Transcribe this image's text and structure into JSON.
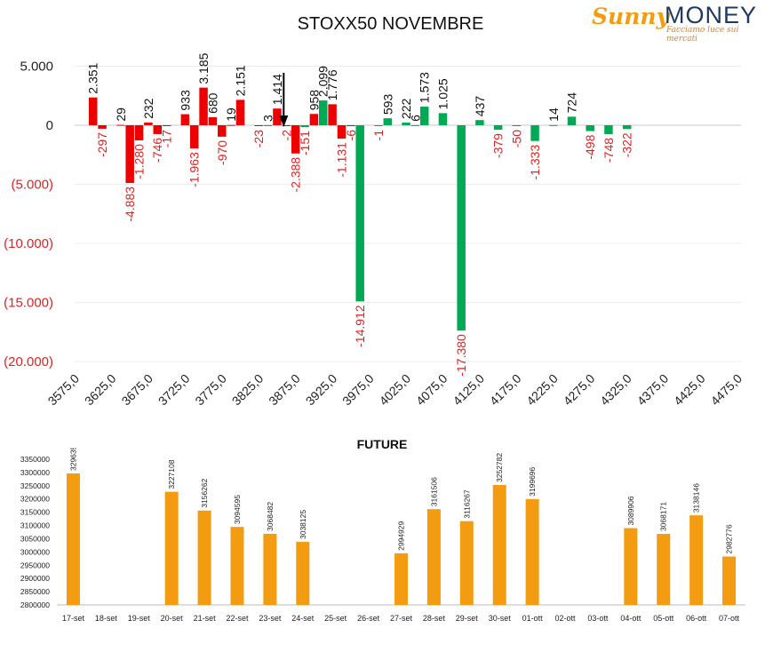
{
  "logo": {
    "part1": "Sunny",
    "part2": "MONEY",
    "tagline": "Facciamo luce sui mercati",
    "colors": {
      "sunny": "#f39c12",
      "money": "#1f3a5f"
    }
  },
  "colors": {
    "positive_otm": "#ee0000",
    "positive_itm": "#00aa55",
    "negative_label": "#dd2222",
    "future_bar": "#f39c12"
  },
  "chart_data": [
    {
      "type": "bar",
      "title": "STOXX50 NOVEMBRE",
      "strike_ticks": [
        "3575,0",
        "3625,0",
        "3675,0",
        "3725,0",
        "3775,0",
        "3825,0",
        "3875,0",
        "3925,0",
        "3975,0",
        "4025,0",
        "4075,0",
        "4125,0",
        "4175,0",
        "4225,0",
        "4275,0",
        "4325,0",
        "4375,0",
        "4425,0",
        "4475,0"
      ],
      "y_ticks": [
        "5.000",
        "0",
        "(5.000)",
        "(10.000)",
        "(15.000)",
        "(20.000)"
      ],
      "ylim": [
        -20000,
        5000
      ],
      "marker": "arrow at 4050",
      "series": [
        {
          "color": "red",
          "bars": [
            {
              "x": 3600,
              "value": 2351,
              "label": "2.351"
            },
            {
              "x": 3612.5,
              "value": -297,
              "label": "-297"
            },
            {
              "x": 3637.5,
              "value": 29,
              "label": "29"
            },
            {
              "x": 3650,
              "value": -4883,
              "label": "-4.883"
            },
            {
              "x": 3662.5,
              "value": -1280,
              "label": "-1.280"
            },
            {
              "x": 3675,
              "value": 232,
              "label": "232"
            },
            {
              "x": 3687.5,
              "value": -746,
              "label": "-746"
            },
            {
              "x": 3700,
              "value": -17,
              "label": "-17"
            },
            {
              "x": 3725,
              "value": 933,
              "label": "933"
            },
            {
              "x": 3737.5,
              "value": -1963,
              "label": "-1.963"
            },
            {
              "x": 3750,
              "value": 3185,
              "label": "3.185"
            },
            {
              "x": 3762.5,
              "value": 680,
              "label": "680"
            },
            {
              "x": 3775,
              "value": -970,
              "label": "-970"
            },
            {
              "x": 3787.5,
              "value": 19,
              "label": "19"
            },
            {
              "x": 3800,
              "value": 2151,
              "label": "2.151"
            },
            {
              "x": 3825,
              "value": -23,
              "label": "-23"
            },
            {
              "x": 3850,
              "value": 1414,
              "label": "1.414"
            },
            {
              "x": 3862.5,
              "value": -2,
              "label": "-2"
            },
            {
              "x": 3875,
              "value": -2388,
              "label": "-2.388"
            },
            {
              "x": 3900,
              "value": 958,
              "label": "958"
            },
            {
              "x": 3925,
              "value": 1776,
              "label": "1.776"
            },
            {
              "x": 3937.5,
              "value": -1131,
              "label": "-1.131"
            },
            {
              "x": 3950,
              "value": -6,
              "label": "-6"
            }
          ]
        },
        {
          "color": "green",
          "bars": [
            {
              "x": 3837.5,
              "value": 3,
              "label": "3"
            },
            {
              "x": 3887.5,
              "value": -151,
              "label": "-151"
            },
            {
              "x": 3912.5,
              "value": 2099,
              "label": "2.099"
            },
            {
              "x": 3962.5,
              "value": -14912,
              "label": "-14.912"
            },
            {
              "x": 3987.5,
              "value": -1,
              "label": "-1"
            },
            {
              "x": 4000,
              "value": 593,
              "label": "593"
            },
            {
              "x": 4025,
              "value": 222,
              "label": "222"
            },
            {
              "x": 4037.5,
              "value": 6,
              "label": "6"
            },
            {
              "x": 4050,
              "value": 1573,
              "label": "1.573"
            },
            {
              "x": 4075,
              "value": 1025,
              "label": "1.025"
            },
            {
              "x": 4100,
              "value": -17380,
              "label": "-17.380"
            },
            {
              "x": 4125,
              "value": 437,
              "label": "437"
            },
            {
              "x": 4150,
              "value": -379,
              "label": "-379"
            },
            {
              "x": 4175,
              "value": -50,
              "label": "-50"
            },
            {
              "x": 4200,
              "value": -1333,
              "label": "-1.333"
            },
            {
              "x": 4225,
              "value": 14,
              "label": "14"
            },
            {
              "x": 4250,
              "value": 724,
              "label": "724"
            },
            {
              "x": 4275,
              "value": -498,
              "label": "-498"
            },
            {
              "x": 4300,
              "value": -748,
              "label": "-748"
            },
            {
              "x": 4325,
              "value": -322,
              "label": "-322"
            }
          ]
        }
      ]
    },
    {
      "type": "bar",
      "title": "FUTURE",
      "categories": [
        "17-set",
        "18-set",
        "19-set",
        "20-set",
        "21-set",
        "22-set",
        "23-set",
        "24-set",
        "25-set",
        "26-set",
        "27-set",
        "28-set",
        "29-set",
        "30-set",
        "01-ott",
        "02-ott",
        "03-ott",
        "04-ott",
        "05-ott",
        "06-ott",
        "07-ott"
      ],
      "values": [
        3296356,
        null,
        null,
        3227108,
        3156262,
        3094595,
        3068482,
        3038125,
        null,
        null,
        2994929,
        3161506,
        3116267,
        3252782,
        3199696,
        null,
        null,
        3089906,
        3068171,
        3138146,
        2982776
      ],
      "y_ticks": [
        "3350000",
        "3300000",
        "3250000",
        "3200000",
        "3150000",
        "3100000",
        "3050000",
        "3000000",
        "2950000",
        "2900000",
        "2850000",
        "2800000"
      ],
      "ylim": [
        2800000,
        3350000
      ]
    }
  ]
}
